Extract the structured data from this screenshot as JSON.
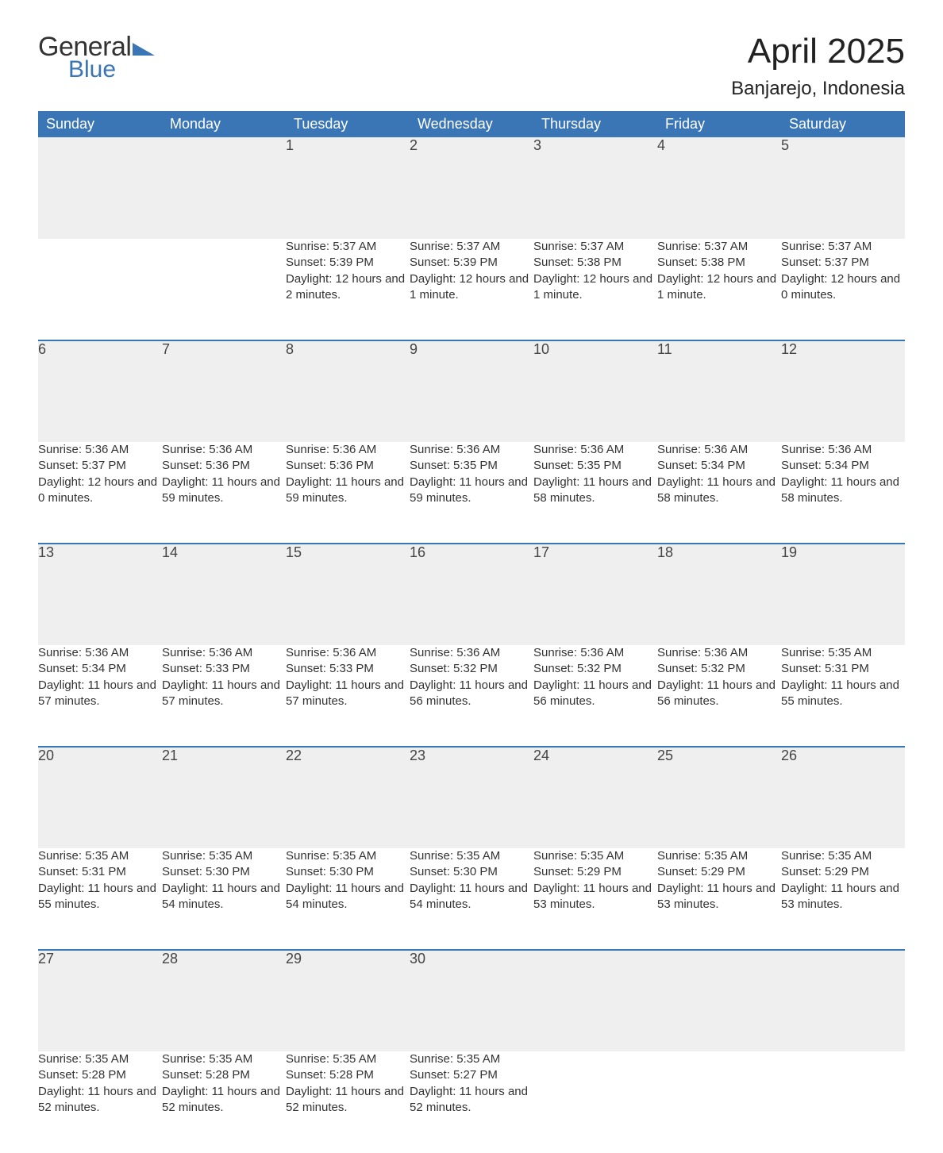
{
  "brand": {
    "word1": "General",
    "word2": "Blue"
  },
  "title": "April 2025",
  "location": "Banjarejo, Indonesia",
  "colors": {
    "header_bg": "#3a76b6",
    "header_text": "#ffffff",
    "daynum_bg": "#efefef",
    "week_border": "#3a76b6",
    "body_text": "#333333",
    "page_bg": "#ffffff"
  },
  "typography": {
    "title_fontsize": 44,
    "location_fontsize": 24,
    "header_fontsize": 18,
    "daynum_fontsize": 18,
    "cell_fontsize": 15
  },
  "layout": {
    "columns": 7,
    "rows": 5
  },
  "day_headers": [
    "Sunday",
    "Monday",
    "Tuesday",
    "Wednesday",
    "Thursday",
    "Friday",
    "Saturday"
  ],
  "weeks": [
    [
      null,
      null,
      {
        "n": "1",
        "sunrise": "5:37 AM",
        "sunset": "5:39 PM",
        "daylight": "12 hours and 2 minutes."
      },
      {
        "n": "2",
        "sunrise": "5:37 AM",
        "sunset": "5:39 PM",
        "daylight": "12 hours and 1 minute."
      },
      {
        "n": "3",
        "sunrise": "5:37 AM",
        "sunset": "5:38 PM",
        "daylight": "12 hours and 1 minute."
      },
      {
        "n": "4",
        "sunrise": "5:37 AM",
        "sunset": "5:38 PM",
        "daylight": "12 hours and 1 minute."
      },
      {
        "n": "5",
        "sunrise": "5:37 AM",
        "sunset": "5:37 PM",
        "daylight": "12 hours and 0 minutes."
      }
    ],
    [
      {
        "n": "6",
        "sunrise": "5:36 AM",
        "sunset": "5:37 PM",
        "daylight": "12 hours and 0 minutes."
      },
      {
        "n": "7",
        "sunrise": "5:36 AM",
        "sunset": "5:36 PM",
        "daylight": "11 hours and 59 minutes."
      },
      {
        "n": "8",
        "sunrise": "5:36 AM",
        "sunset": "5:36 PM",
        "daylight": "11 hours and 59 minutes."
      },
      {
        "n": "9",
        "sunrise": "5:36 AM",
        "sunset": "5:35 PM",
        "daylight": "11 hours and 59 minutes."
      },
      {
        "n": "10",
        "sunrise": "5:36 AM",
        "sunset": "5:35 PM",
        "daylight": "11 hours and 58 minutes."
      },
      {
        "n": "11",
        "sunrise": "5:36 AM",
        "sunset": "5:34 PM",
        "daylight": "11 hours and 58 minutes."
      },
      {
        "n": "12",
        "sunrise": "5:36 AM",
        "sunset": "5:34 PM",
        "daylight": "11 hours and 58 minutes."
      }
    ],
    [
      {
        "n": "13",
        "sunrise": "5:36 AM",
        "sunset": "5:34 PM",
        "daylight": "11 hours and 57 minutes."
      },
      {
        "n": "14",
        "sunrise": "5:36 AM",
        "sunset": "5:33 PM",
        "daylight": "11 hours and 57 minutes."
      },
      {
        "n": "15",
        "sunrise": "5:36 AM",
        "sunset": "5:33 PM",
        "daylight": "11 hours and 57 minutes."
      },
      {
        "n": "16",
        "sunrise": "5:36 AM",
        "sunset": "5:32 PM",
        "daylight": "11 hours and 56 minutes."
      },
      {
        "n": "17",
        "sunrise": "5:36 AM",
        "sunset": "5:32 PM",
        "daylight": "11 hours and 56 minutes."
      },
      {
        "n": "18",
        "sunrise": "5:36 AM",
        "sunset": "5:32 PM",
        "daylight": "11 hours and 56 minutes."
      },
      {
        "n": "19",
        "sunrise": "5:35 AM",
        "sunset": "5:31 PM",
        "daylight": "11 hours and 55 minutes."
      }
    ],
    [
      {
        "n": "20",
        "sunrise": "5:35 AM",
        "sunset": "5:31 PM",
        "daylight": "11 hours and 55 minutes."
      },
      {
        "n": "21",
        "sunrise": "5:35 AM",
        "sunset": "5:30 PM",
        "daylight": "11 hours and 54 minutes."
      },
      {
        "n": "22",
        "sunrise": "5:35 AM",
        "sunset": "5:30 PM",
        "daylight": "11 hours and 54 minutes."
      },
      {
        "n": "23",
        "sunrise": "5:35 AM",
        "sunset": "5:30 PM",
        "daylight": "11 hours and 54 minutes."
      },
      {
        "n": "24",
        "sunrise": "5:35 AM",
        "sunset": "5:29 PM",
        "daylight": "11 hours and 53 minutes."
      },
      {
        "n": "25",
        "sunrise": "5:35 AM",
        "sunset": "5:29 PM",
        "daylight": "11 hours and 53 minutes."
      },
      {
        "n": "26",
        "sunrise": "5:35 AM",
        "sunset": "5:29 PM",
        "daylight": "11 hours and 53 minutes."
      }
    ],
    [
      {
        "n": "27",
        "sunrise": "5:35 AM",
        "sunset": "5:28 PM",
        "daylight": "11 hours and 52 minutes."
      },
      {
        "n": "28",
        "sunrise": "5:35 AM",
        "sunset": "5:28 PM",
        "daylight": "11 hours and 52 minutes."
      },
      {
        "n": "29",
        "sunrise": "5:35 AM",
        "sunset": "5:28 PM",
        "daylight": "11 hours and 52 minutes."
      },
      {
        "n": "30",
        "sunrise": "5:35 AM",
        "sunset": "5:27 PM",
        "daylight": "11 hours and 52 minutes."
      },
      null,
      null,
      null
    ]
  ]
}
